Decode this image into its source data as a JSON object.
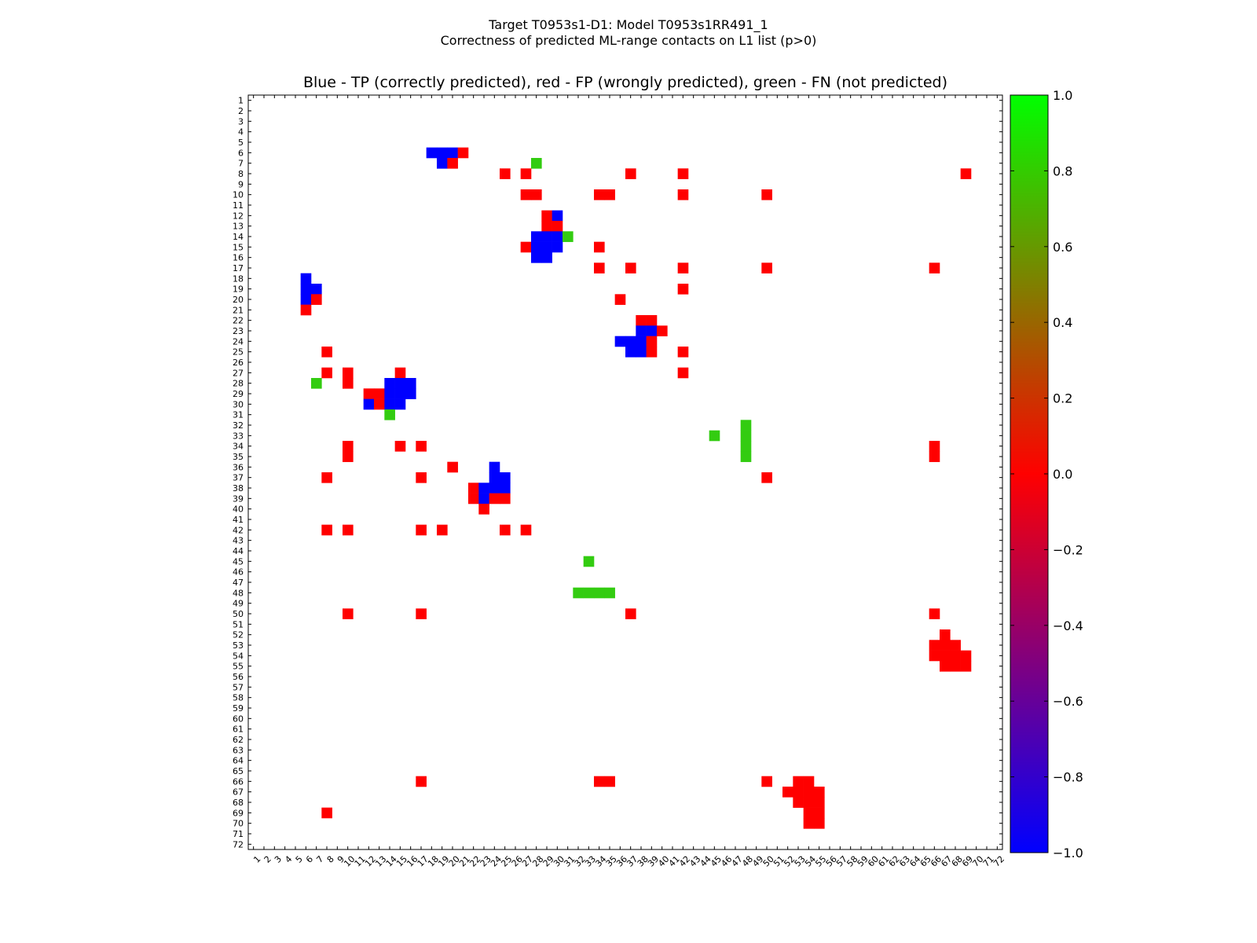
{
  "chart_data": {
    "type": "heatmap",
    "title": "Target T0953s1-D1: Model T0953s1RR491_1",
    "subtitle": "Correctness of predicted ML-range contacts on L1 list (p>0)",
    "plot_title": "Blue - TP (correctly predicted), red - FP (wrongly predicted), green - FN (not predicted)",
    "xlabel": "",
    "ylabel": "",
    "n": 72,
    "x_ticks": [
      "1",
      "2",
      "3",
      "4",
      "5",
      "6",
      "7",
      "8",
      "9",
      "10",
      "11",
      "12",
      "13",
      "14",
      "15",
      "16",
      "17",
      "18",
      "19",
      "20",
      "21",
      "22",
      "23",
      "24",
      "25",
      "26",
      "27",
      "28",
      "29",
      "30",
      "31",
      "32",
      "33",
      "34",
      "35",
      "36",
      "37",
      "38",
      "39",
      "40",
      "41",
      "42",
      "43",
      "44",
      "45",
      "46",
      "47",
      "48",
      "49",
      "50",
      "51",
      "52",
      "53",
      "54",
      "55",
      "56",
      "57",
      "58",
      "59",
      "60",
      "61",
      "62",
      "63",
      "64",
      "65",
      "66",
      "67",
      "68",
      "69",
      "70",
      "71",
      "72"
    ],
    "y_ticks": [
      "1",
      "2",
      "3",
      "4",
      "5",
      "6",
      "7",
      "8",
      "9",
      "10",
      "11",
      "12",
      "13",
      "14",
      "15",
      "16",
      "17",
      "18",
      "19",
      "20",
      "21",
      "22",
      "23",
      "24",
      "25",
      "26",
      "27",
      "28",
      "29",
      "30",
      "31",
      "32",
      "33",
      "34",
      "35",
      "36",
      "37",
      "38",
      "39",
      "40",
      "41",
      "42",
      "43",
      "44",
      "45",
      "46",
      "47",
      "48",
      "49",
      "50",
      "51",
      "52",
      "53",
      "54",
      "55",
      "56",
      "57",
      "58",
      "59",
      "60",
      "61",
      "62",
      "63",
      "64",
      "65",
      "66",
      "67",
      "68",
      "69",
      "70",
      "71",
      "72"
    ],
    "colorbar": {
      "min": -1.0,
      "max": 1.0,
      "ticks": [
        "1.0",
        "0.8",
        "0.6",
        "0.4",
        "0.2",
        "0.0",
        "−0.2",
        "−0.4",
        "−0.6",
        "−0.8",
        "−1.0"
      ],
      "tick_values": [
        1.0,
        0.8,
        0.6,
        0.4,
        0.2,
        0.0,
        -0.2,
        -0.4,
        -0.6,
        -0.8,
        -1.0
      ]
    },
    "categories": {
      "tp": {
        "value": -1,
        "color": "#0000ff"
      },
      "fp": {
        "value": 0,
        "color": "#ff0000"
      },
      "fn": {
        "value": 1,
        "color": "#33cc11"
      }
    },
    "cells": [
      [
        6,
        18,
        "tp"
      ],
      [
        6,
        19,
        "tp"
      ],
      [
        6,
        20,
        "tp"
      ],
      [
        6,
        21,
        "fp"
      ],
      [
        7,
        19,
        "tp"
      ],
      [
        7,
        20,
        "fp"
      ],
      [
        7,
        28,
        "fn"
      ],
      [
        8,
        25,
        "fp"
      ],
      [
        8,
        27,
        "fp"
      ],
      [
        8,
        37,
        "fp"
      ],
      [
        8,
        42,
        "fp"
      ],
      [
        8,
        69,
        "fp"
      ],
      [
        10,
        27,
        "fp"
      ],
      [
        10,
        28,
        "fp"
      ],
      [
        10,
        34,
        "fp"
      ],
      [
        10,
        35,
        "fp"
      ],
      [
        10,
        42,
        "fp"
      ],
      [
        10,
        50,
        "fp"
      ],
      [
        12,
        29,
        "fp"
      ],
      [
        12,
        30,
        "tp"
      ],
      [
        13,
        29,
        "fp"
      ],
      [
        13,
        30,
        "fp"
      ],
      [
        14,
        28,
        "tp"
      ],
      [
        14,
        29,
        "tp"
      ],
      [
        14,
        30,
        "tp"
      ],
      [
        14,
        31,
        "fn"
      ],
      [
        15,
        27,
        "fp"
      ],
      [
        15,
        28,
        "tp"
      ],
      [
        15,
        29,
        "tp"
      ],
      [
        15,
        30,
        "tp"
      ],
      [
        15,
        34,
        "fp"
      ],
      [
        16,
        28,
        "tp"
      ],
      [
        16,
        29,
        "tp"
      ],
      [
        17,
        34,
        "fp"
      ],
      [
        17,
        37,
        "fp"
      ],
      [
        17,
        42,
        "fp"
      ],
      [
        17,
        50,
        "fp"
      ],
      [
        17,
        66,
        "fp"
      ],
      [
        18,
        6,
        "tp"
      ],
      [
        19,
        6,
        "tp"
      ],
      [
        19,
        7,
        "tp"
      ],
      [
        19,
        42,
        "fp"
      ],
      [
        20,
        6,
        "tp"
      ],
      [
        20,
        7,
        "fp"
      ],
      [
        20,
        36,
        "fp"
      ],
      [
        21,
        6,
        "fp"
      ],
      [
        22,
        38,
        "fp"
      ],
      [
        22,
        39,
        "fp"
      ],
      [
        23,
        38,
        "tp"
      ],
      [
        23,
        39,
        "tp"
      ],
      [
        23,
        40,
        "fp"
      ],
      [
        24,
        36,
        "tp"
      ],
      [
        24,
        37,
        "tp"
      ],
      [
        24,
        38,
        "tp"
      ],
      [
        24,
        39,
        "fp"
      ],
      [
        25,
        8,
        "fp"
      ],
      [
        25,
        37,
        "tp"
      ],
      [
        25,
        38,
        "tp"
      ],
      [
        25,
        39,
        "fp"
      ],
      [
        25,
        42,
        "fp"
      ],
      [
        27,
        8,
        "fp"
      ],
      [
        27,
        10,
        "fp"
      ],
      [
        27,
        15,
        "fp"
      ],
      [
        27,
        42,
        "fp"
      ],
      [
        28,
        7,
        "fn"
      ],
      [
        28,
        10,
        "fp"
      ],
      [
        28,
        14,
        "tp"
      ],
      [
        28,
        15,
        "tp"
      ],
      [
        28,
        16,
        "tp"
      ],
      [
        29,
        12,
        "fp"
      ],
      [
        29,
        13,
        "fp"
      ],
      [
        29,
        14,
        "tp"
      ],
      [
        29,
        15,
        "tp"
      ],
      [
        29,
        16,
        "tp"
      ],
      [
        30,
        12,
        "tp"
      ],
      [
        30,
        13,
        "fp"
      ],
      [
        30,
        14,
        "tp"
      ],
      [
        30,
        15,
        "tp"
      ],
      [
        31,
        14,
        "fn"
      ],
      [
        32,
        48,
        "fn"
      ],
      [
        33,
        45,
        "fn"
      ],
      [
        33,
        48,
        "fn"
      ],
      [
        34,
        10,
        "fp"
      ],
      [
        34,
        15,
        "fp"
      ],
      [
        34,
        17,
        "fp"
      ],
      [
        34,
        48,
        "fn"
      ],
      [
        34,
        66,
        "fp"
      ],
      [
        35,
        10,
        "fp"
      ],
      [
        35,
        48,
        "fn"
      ],
      [
        35,
        66,
        "fp"
      ],
      [
        36,
        20,
        "fp"
      ],
      [
        36,
        24,
        "tp"
      ],
      [
        37,
        8,
        "fp"
      ],
      [
        37,
        17,
        "fp"
      ],
      [
        37,
        24,
        "tp"
      ],
      [
        37,
        25,
        "tp"
      ],
      [
        37,
        50,
        "fp"
      ],
      [
        38,
        22,
        "fp"
      ],
      [
        38,
        23,
        "tp"
      ],
      [
        38,
        24,
        "tp"
      ],
      [
        38,
        25,
        "tp"
      ],
      [
        39,
        22,
        "fp"
      ],
      [
        39,
        23,
        "tp"
      ],
      [
        39,
        24,
        "fp"
      ],
      [
        39,
        25,
        "fp"
      ],
      [
        40,
        23,
        "fp"
      ],
      [
        42,
        8,
        "fp"
      ],
      [
        42,
        10,
        "fp"
      ],
      [
        42,
        17,
        "fp"
      ],
      [
        42,
        19,
        "fp"
      ],
      [
        42,
        25,
        "fp"
      ],
      [
        42,
        27,
        "fp"
      ],
      [
        45,
        33,
        "fn"
      ],
      [
        48,
        32,
        "fn"
      ],
      [
        48,
        33,
        "fn"
      ],
      [
        48,
        34,
        "fn"
      ],
      [
        48,
        35,
        "fn"
      ],
      [
        50,
        10,
        "fp"
      ],
      [
        50,
        17,
        "fp"
      ],
      [
        50,
        37,
        "fp"
      ],
      [
        50,
        66,
        "fp"
      ],
      [
        52,
        67,
        "fp"
      ],
      [
        53,
        66,
        "fp"
      ],
      [
        53,
        67,
        "fp"
      ],
      [
        53,
        68,
        "fp"
      ],
      [
        54,
        66,
        "fp"
      ],
      [
        54,
        67,
        "fp"
      ],
      [
        54,
        68,
        "fp"
      ],
      [
        54,
        69,
        "fp"
      ],
      [
        55,
        67,
        "fp"
      ],
      [
        55,
        68,
        "fp"
      ],
      [
        55,
        69,
        "fp"
      ],
      [
        66,
        17,
        "fp"
      ],
      [
        66,
        34,
        "fp"
      ],
      [
        66,
        35,
        "fp"
      ],
      [
        66,
        50,
        "fp"
      ],
      [
        66,
        53,
        "fp"
      ],
      [
        66,
        54,
        "fp"
      ],
      [
        67,
        52,
        "fp"
      ],
      [
        67,
        53,
        "fp"
      ],
      [
        67,
        54,
        "fp"
      ],
      [
        67,
        55,
        "fp"
      ],
      [
        68,
        53,
        "fp"
      ],
      [
        68,
        54,
        "fp"
      ],
      [
        68,
        55,
        "fp"
      ],
      [
        69,
        8,
        "fp"
      ],
      [
        69,
        54,
        "fp"
      ],
      [
        69,
        55,
        "fp"
      ],
      [
        70,
        54,
        "fp"
      ],
      [
        70,
        55,
        "fp"
      ]
    ]
  }
}
